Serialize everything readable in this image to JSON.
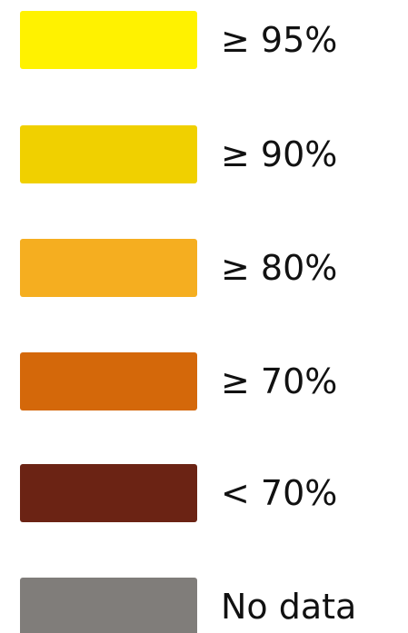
{
  "legend": {
    "items": [
      {
        "label": "≥ 95%",
        "color": "#FFF200"
      },
      {
        "label": "≥ 90%",
        "color": "#F0D000"
      },
      {
        "label": "≥ 80%",
        "color": "#F5AE20"
      },
      {
        "label": "≥ 70%",
        "color": "#D4680A"
      },
      {
        "label": "< 70%",
        "color": "#6B2314"
      },
      {
        "label": "No data",
        "color": "#807D7A"
      }
    ]
  }
}
